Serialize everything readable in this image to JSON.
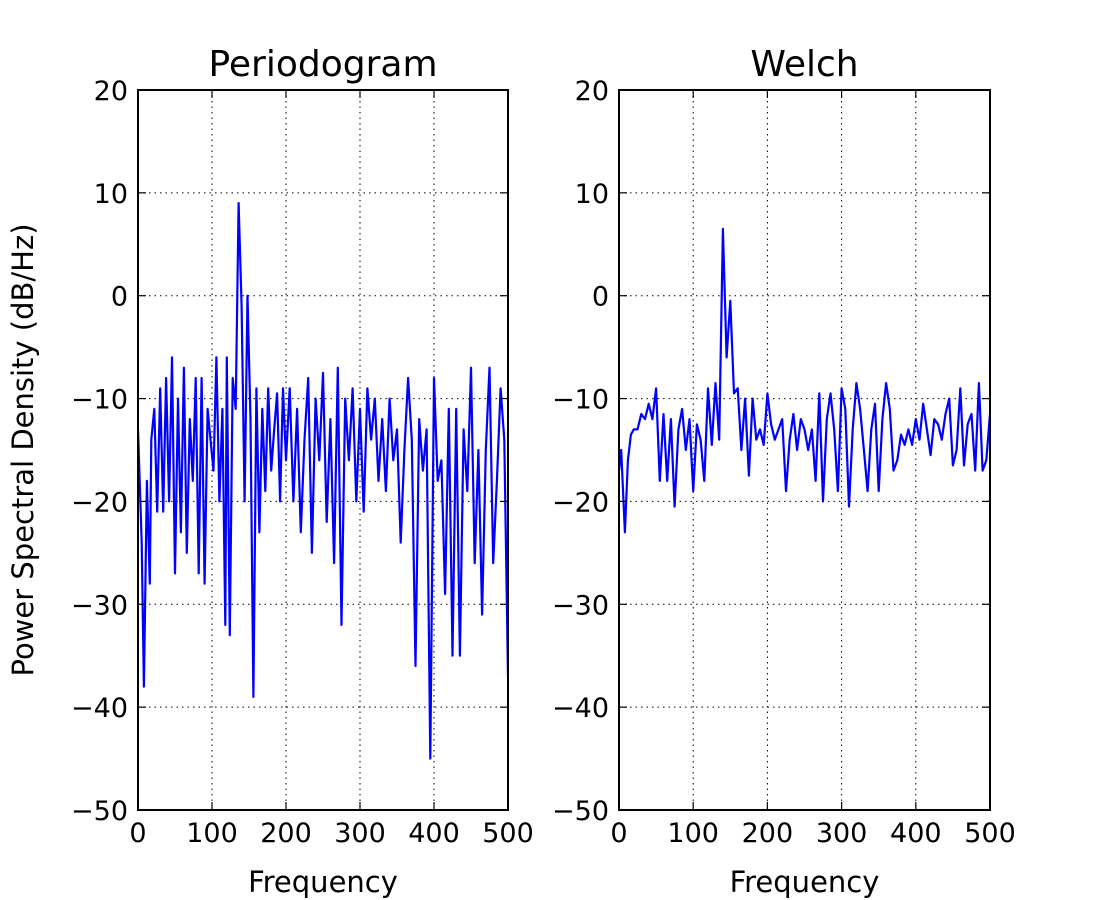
{
  "chart_data": [
    {
      "type": "line",
      "title": "Periodogram",
      "xlabel": "Frequency",
      "ylabel": "Power Spectral Density (dB/Hz)",
      "xlim": [
        0,
        500
      ],
      "ylim": [
        -50,
        20
      ],
      "xticks": [
        "0",
        "100",
        "200",
        "300",
        "400",
        "500"
      ],
      "yticks": [
        "20",
        "10",
        "0",
        "−10",
        "−20",
        "−30",
        "−40",
        "−50"
      ],
      "grid": true,
      "color": "#0000ff",
      "x": [
        0,
        5,
        8,
        12,
        16,
        18,
        22,
        26,
        30,
        34,
        38,
        42,
        46,
        50,
        54,
        58,
        62,
        66,
        70,
        74,
        78,
        82,
        86,
        90,
        94,
        98,
        102,
        106,
        110,
        114,
        118,
        120,
        124,
        128,
        132,
        136,
        140,
        144,
        148,
        152,
        156,
        160,
        164,
        168,
        172,
        176,
        180,
        184,
        188,
        192,
        196,
        200,
        205,
        210,
        215,
        220,
        225,
        230,
        235,
        240,
        245,
        250,
        255,
        260,
        265,
        270,
        275,
        280,
        285,
        290,
        295,
        300,
        305,
        310,
        315,
        320,
        325,
        330,
        335,
        340,
        345,
        350,
        355,
        360,
        365,
        370,
        375,
        380,
        385,
        390,
        395,
        400,
        405,
        410,
        415,
        420,
        425,
        430,
        435,
        440,
        445,
        450,
        455,
        460,
        465,
        470,
        475,
        480,
        485,
        490,
        495,
        500
      ],
      "y": [
        -13,
        -24,
        -38,
        -18,
        -28,
        -14,
        -11,
        -21,
        -9,
        -21,
        -8,
        -20,
        -6,
        -27,
        -10,
        -23,
        -7,
        -25,
        -12,
        -18,
        -8,
        -27,
        -8,
        -28,
        -11,
        -14,
        -17,
        -6,
        -20,
        -11,
        -32,
        -6,
        -33,
        -8,
        -11,
        9,
        -1,
        -20,
        0,
        -12,
        -39,
        -9,
        -23,
        -11,
        -19,
        -9,
        -17,
        -13,
        -9.5,
        -20,
        -9,
        -16,
        -9,
        -20,
        -11,
        -23,
        -14,
        -8,
        -25,
        -10,
        -16,
        -7.5,
        -22,
        -12,
        -26,
        -7,
        -32,
        -10,
        -16,
        -9,
        -20,
        -11,
        -21,
        -9,
        -14,
        -10,
        -18,
        -12,
        -19,
        -10,
        -16,
        -13,
        -24,
        -15,
        -8,
        -14,
        -36,
        -12,
        -17,
        -13,
        -45,
        -8,
        -18,
        -16,
        -29,
        -11,
        -35,
        -11,
        -35,
        -13,
        -19,
        -7,
        -26,
        -15,
        -31,
        -15,
        -7,
        -26,
        -18,
        -9,
        -14,
        -37
      ]
    },
    {
      "type": "line",
      "title": "Welch",
      "xlabel": "Frequency",
      "ylabel": "",
      "xlim": [
        0,
        500
      ],
      "ylim": [
        -50,
        20
      ],
      "xticks": [
        "0",
        "100",
        "200",
        "300",
        "400",
        "500"
      ],
      "yticks": [
        "20",
        "10",
        "0",
        "−10",
        "−20",
        "−30",
        "−40",
        "−50"
      ],
      "grid": true,
      "color": "#0000ff",
      "x": [
        0,
        3,
        8,
        12,
        16,
        20,
        25,
        30,
        35,
        40,
        45,
        50,
        55,
        60,
        65,
        70,
        75,
        80,
        85,
        90,
        95,
        100,
        105,
        110,
        115,
        120,
        125,
        130,
        135,
        140,
        145,
        150,
        155,
        160,
        165,
        170,
        175,
        180,
        185,
        190,
        195,
        200,
        205,
        210,
        215,
        220,
        225,
        230,
        235,
        240,
        245,
        250,
        255,
        260,
        265,
        270,
        275,
        280,
        285,
        290,
        295,
        300,
        305,
        310,
        315,
        320,
        325,
        330,
        335,
        340,
        345,
        350,
        355,
        360,
        365,
        370,
        375,
        380,
        385,
        390,
        395,
        400,
        405,
        410,
        415,
        420,
        425,
        430,
        435,
        440,
        445,
        450,
        455,
        460,
        465,
        470,
        475,
        480,
        485,
        490,
        495,
        500
      ],
      "y": [
        -17,
        -15,
        -23,
        -16,
        -13.5,
        -13,
        -13,
        -11.5,
        -12,
        -10.5,
        -12,
        -9,
        -18,
        -11.5,
        -18,
        -12,
        -20.5,
        -13,
        -11,
        -15,
        -12,
        -19,
        -12.5,
        -14,
        -18,
        -9,
        -14.5,
        -8.5,
        -14,
        6.5,
        -6,
        -0.5,
        -9.5,
        -9,
        -15,
        -10,
        -17.5,
        -10,
        -14,
        -13,
        -14.5,
        -9.5,
        -12.5,
        -14,
        -13,
        -12,
        -19,
        -14,
        -11.5,
        -15,
        -12,
        -13,
        -15,
        -13,
        -18,
        -9.5,
        -20,
        -12,
        -9.5,
        -13,
        -19,
        -9,
        -11,
        -20.5,
        -13,
        -8.5,
        -11,
        -15,
        -19,
        -13,
        -10.5,
        -19,
        -12,
        -8.5,
        -11,
        -17,
        -16,
        -13.5,
        -14.5,
        -13,
        -14.5,
        -12,
        -14,
        -10.5,
        -13,
        -15.5,
        -12,
        -12.5,
        -14,
        -11.5,
        -10,
        -16.5,
        -15,
        -9,
        -16.5,
        -12.5,
        -11.5,
        -17,
        -8.5,
        -17,
        -16,
        -11.5
      ]
    }
  ]
}
